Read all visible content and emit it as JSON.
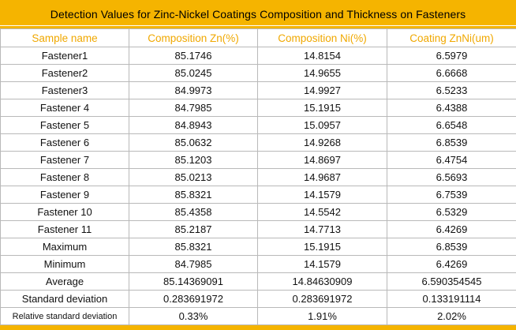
{
  "title": "Detection Values for Zinc-Nickel Coatings Composition and Thickness on Fasteners",
  "headers": [
    "Sample name",
    "Composition Zn(%)",
    "Composition Ni(%)",
    "Coating ZnNi(um)"
  ],
  "rows": [
    [
      "Fastener1",
      "85.1746",
      "14.8154",
      "6.5979"
    ],
    [
      "Fastener2",
      "85.0245",
      "14.9655",
      "6.6668"
    ],
    [
      "Fastener3",
      "84.9973",
      "14.9927",
      "6.5233"
    ],
    [
      "Fastener 4",
      "84.7985",
      "15.1915",
      "6.4388"
    ],
    [
      "Fastener 5",
      "84.8943",
      "15.0957",
      "6.6548"
    ],
    [
      "Fastener 6",
      "85.0632",
      "14.9268",
      "6.8539"
    ],
    [
      "Fastener 7",
      "85.1203",
      "14.8697",
      "6.4754"
    ],
    [
      "Fastener 8",
      "85.0213",
      "14.9687",
      "6.5693"
    ],
    [
      "Fastener 9",
      "85.8321",
      "14.1579",
      "6.7539"
    ],
    [
      "Fastener 10",
      "85.4358",
      "14.5542",
      "6.5329"
    ],
    [
      "Fastener 11",
      "85.2187",
      "14.7713",
      "6.4269"
    ],
    [
      "Maximum",
      "85.8321",
      "15.1915",
      "6.8539"
    ],
    [
      "Minimum",
      "84.7985",
      "14.1579",
      "6.4269"
    ],
    [
      "Average",
      "85.14369091",
      "14.84630909",
      "6.590354545"
    ],
    [
      "Standard deviation",
      "0.283691972",
      "0.283691972",
      "0.133191114"
    ],
    [
      "Relative standard deviation",
      "0.33%",
      "1.91%",
      "2.02%"
    ]
  ],
  "colors": {
    "accent": "#f5b400",
    "header_text": "#f0a800",
    "grid": "#b9b9b9"
  }
}
